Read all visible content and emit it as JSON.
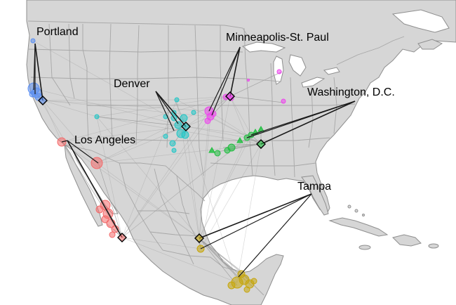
{
  "map": {
    "colors": {
      "land": "#d6d6d6",
      "water": "#ffffff",
      "border": "#a7a7a7",
      "coast": "#8f8f8f",
      "flow_line": "#9a9a9a",
      "hub_line": "#1a1a1a"
    },
    "city_labels": [
      {
        "id": "portland",
        "text": "Portland"
      },
      {
        "id": "minneapolis",
        "text": "Minneapolis-St. Paul"
      },
      {
        "id": "denver",
        "text": "Denver"
      },
      {
        "id": "washington",
        "text": "Washington, D.C."
      },
      {
        "id": "los-angeles",
        "text": "Los Angeles"
      },
      {
        "id": "tampa",
        "text": "Tampa"
      }
    ],
    "groups": [
      {
        "id": "portland",
        "color": "#5b8ff2",
        "marker": "circle"
      },
      {
        "id": "minneapolis",
        "color": "#ee44ee",
        "marker": "circle"
      },
      {
        "id": "denver",
        "color": "#22c6c6",
        "marker": "circle"
      },
      {
        "id": "washington",
        "color": "#1fbf3f",
        "marker": "triangle"
      },
      {
        "id": "los-angeles",
        "color": "#f46a6a",
        "marker": "circle"
      },
      {
        "id": "tampa",
        "color": "#c6a60a",
        "marker": "circle"
      }
    ]
  }
}
